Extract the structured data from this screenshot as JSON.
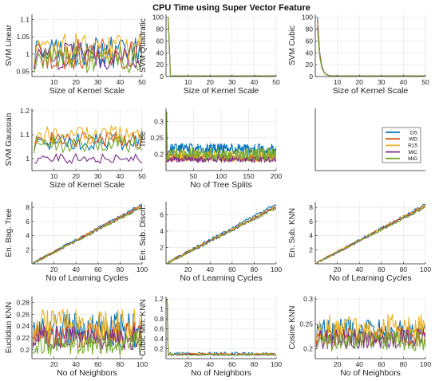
{
  "figure": {
    "title": "CPU Time using Super Vector Feature"
  },
  "colors": {
    "DS": "#0072BD",
    "WD": "#D95319",
    "R15": "#EDB120",
    "MiC": "#7E2F8E",
    "MiG": "#77AC30"
  },
  "chart_data": [
    {
      "id": "svm-linear",
      "type": "line",
      "ylabel": "SVM Linear",
      "xlabel": "Size of Kernel Scale",
      "xlim": [
        0,
        50
      ],
      "ylim": [
        0.935,
        1.115
      ],
      "xticks": [
        10,
        20,
        30,
        40,
        50
      ],
      "yticks": [
        0.95,
        1,
        1.05,
        1.1
      ],
      "ytick_labels": [
        "0.95",
        "1",
        "1.05",
        "1.1"
      ],
      "profile": "noisy",
      "n": 50,
      "series": [
        {
          "name": "DS",
          "mean": 1.005,
          "amp": 0.045
        },
        {
          "name": "WD",
          "mean": 1.0,
          "amp": 0.045
        },
        {
          "name": "R15",
          "mean": 1.01,
          "amp": 0.05
        },
        {
          "name": "MiC",
          "mean": 0.995,
          "amp": 0.04
        },
        {
          "name": "MiG",
          "mean": 0.985,
          "amp": 0.04
        }
      ]
    },
    {
      "id": "svm-quadratic",
      "type": "line",
      "ylabel": "SVM Quadratic",
      "xlabel": "Size of Kernel Scale",
      "xlim": [
        0,
        50
      ],
      "ylim": [
        0,
        105
      ],
      "xticks": [
        10,
        20,
        30,
        40,
        50
      ],
      "yticks": [
        0,
        20,
        40,
        60,
        80,
        100
      ],
      "ytick_labels": [
        "0",
        "20",
        "40",
        "60",
        "80",
        "100"
      ],
      "profile": "spike",
      "n": 50,
      "series": [
        {
          "name": "DS",
          "start": 100,
          "end": 0.8
        },
        {
          "name": "WD",
          "start": 100,
          "end": 0.8
        },
        {
          "name": "R15",
          "start": 100,
          "end": 0.8
        },
        {
          "name": "MiC",
          "start": 100,
          "end": 0.8
        },
        {
          "name": "MiG",
          "start": 100,
          "end": 0.8
        }
      ]
    },
    {
      "id": "svm-cubic",
      "type": "line",
      "ylabel": "SVM Cubic",
      "xlabel": "Size of Kernel Scale",
      "xlim": [
        0,
        50
      ],
      "ylim": [
        0,
        105
      ],
      "xticks": [
        10,
        20,
        30,
        40,
        50
      ],
      "yticks": [
        0,
        20,
        40,
        60,
        80,
        100
      ],
      "ytick_labels": [
        "0",
        "20",
        "40",
        "60",
        "80",
        "100"
      ],
      "profile": "decay",
      "n": 50,
      "series": [
        {
          "name": "DS",
          "start": 100,
          "end": 1
        },
        {
          "name": "WD",
          "start": 95,
          "end": 1
        },
        {
          "name": "R15",
          "start": 90,
          "end": 1
        },
        {
          "name": "MiC",
          "start": 85,
          "end": 1
        },
        {
          "name": "MiG",
          "start": 80,
          "end": 1
        }
      ]
    },
    {
      "id": "svm-gaussian",
      "type": "line",
      "ylabel": "SVM Gaussian",
      "xlabel": "Size of Kernel Scale",
      "xlim": [
        0,
        50
      ],
      "ylim": [
        0.95,
        1.21
      ],
      "xticks": [
        10,
        20,
        30,
        40,
        50
      ],
      "yticks": [
        1,
        1.1,
        1.2
      ],
      "ytick_labels": [
        "1",
        "1.1",
        "1.2"
      ],
      "profile": "noisy",
      "n": 50,
      "series": [
        {
          "name": "DS",
          "mean": 1.07,
          "amp": 0.035
        },
        {
          "name": "WD",
          "mean": 1.08,
          "amp": 0.035
        },
        {
          "name": "R15",
          "mean": 1.1,
          "amp": 0.04
        },
        {
          "name": "MiC",
          "mean": 1.0,
          "amp": 0.02
        },
        {
          "name": "MiG",
          "mean": 1.06,
          "amp": 0.04
        }
      ]
    },
    {
      "id": "tree",
      "type": "line",
      "ylabel": "Tree",
      "xlabel": "No of Tree Splits",
      "xlim": [
        0,
        200
      ],
      "ylim": [
        0.15,
        0.34
      ],
      "xticks": [
        50,
        100,
        150,
        200
      ],
      "yticks": [
        0.2,
        0.25,
        0.3
      ],
      "ytick_labels": [
        "0.2",
        "0.25",
        "0.3"
      ],
      "profile": "noisy-first",
      "n": 200,
      "first": 0.33,
      "series": [
        {
          "name": "DS",
          "mean": 0.215,
          "amp": 0.018
        },
        {
          "name": "WD",
          "mean": 0.19,
          "amp": 0.012
        },
        {
          "name": "R15",
          "mean": 0.195,
          "amp": 0.018
        },
        {
          "name": "MiC",
          "mean": 0.185,
          "amp": 0.01
        },
        {
          "name": "MiG",
          "mean": 0.2,
          "amp": 0.02
        }
      ]
    },
    {
      "id": "legend-panel",
      "type": "empty",
      "legend": [
        "DS",
        "WD",
        "R15",
        "MiC",
        "MiG"
      ]
    },
    {
      "id": "en-bag-tree",
      "type": "line",
      "ylabel": "En. Bag. Tree",
      "xlabel": "No of Learning Cycles",
      "xlim": [
        0,
        100
      ],
      "ylim": [
        0,
        8.8
      ],
      "xticks": [
        20,
        40,
        60,
        80,
        100
      ],
      "yticks": [
        2,
        4,
        6,
        8
      ],
      "ytick_labels": [
        "2",
        "4",
        "6",
        "8"
      ],
      "profile": "linear",
      "n": 100,
      "series": [
        {
          "name": "DS",
          "start": 0.1,
          "end": 8.4
        },
        {
          "name": "WD",
          "start": 0.1,
          "end": 8.3
        },
        {
          "name": "R15",
          "start": 0.1,
          "end": 8.2
        },
        {
          "name": "MiC",
          "start": 0.1,
          "end": 8.1
        },
        {
          "name": "MiG",
          "start": 0.1,
          "end": 8.0
        }
      ]
    },
    {
      "id": "en-sub-discr",
      "type": "line",
      "ylabel": "En. Sub. Discri.",
      "xlabel": "No of Learning Cycles",
      "xlim": [
        0,
        100
      ],
      "ylim": [
        0,
        7.6
      ],
      "xticks": [
        20,
        40,
        60,
        80,
        100
      ],
      "yticks": [
        2,
        4,
        6
      ],
      "ytick_labels": [
        "2",
        "4",
        "6"
      ],
      "profile": "linear",
      "n": 100,
      "series": [
        {
          "name": "DS",
          "start": 0.1,
          "end": 7.3
        },
        {
          "name": "WD",
          "start": 0.1,
          "end": 7.0
        },
        {
          "name": "R15",
          "start": 0.1,
          "end": 7.0
        },
        {
          "name": "MiC",
          "start": 0.1,
          "end": 6.9
        },
        {
          "name": "MiG",
          "start": 0.1,
          "end": 6.8
        }
      ]
    },
    {
      "id": "en-sub-knn",
      "type": "line",
      "ylabel": "En. Sub. KNN",
      "xlabel": "No of Learning Cycles",
      "xlim": [
        0,
        100
      ],
      "ylim": [
        0,
        8.8
      ],
      "xticks": [
        20,
        40,
        60,
        80,
        100
      ],
      "yticks": [
        2,
        4,
        6,
        8
      ],
      "ytick_labels": [
        "2",
        "4",
        "6",
        "8"
      ],
      "profile": "linear",
      "n": 100,
      "series": [
        {
          "name": "DS",
          "start": 0.1,
          "end": 8.4
        },
        {
          "name": "WD",
          "start": 0.1,
          "end": 8.3
        },
        {
          "name": "R15",
          "start": 0.1,
          "end": 8.3
        },
        {
          "name": "MiC",
          "start": 0.1,
          "end": 8.1
        },
        {
          "name": "MiG",
          "start": 0.1,
          "end": 8.0
        }
      ]
    },
    {
      "id": "euclidian-knn",
      "type": "line",
      "ylabel": "Euclidian KNN",
      "xlabel": "No of Neighbors",
      "xlim": [
        0,
        100
      ],
      "ylim": [
        0.185,
        0.29
      ],
      "xticks": [
        20,
        40,
        60,
        80,
        100
      ],
      "yticks": [
        0.2,
        0.22,
        0.24,
        0.26,
        0.28
      ],
      "ytick_labels": [
        "0.2",
        "0.22",
        "0.24",
        "0.26",
        "0.28"
      ],
      "profile": "noisy",
      "n": 100,
      "series": [
        {
          "name": "DS",
          "mean": 0.235,
          "amp": 0.03
        },
        {
          "name": "WD",
          "mean": 0.225,
          "amp": 0.022
        },
        {
          "name": "R15",
          "mean": 0.24,
          "amp": 0.03
        },
        {
          "name": "MiC",
          "mean": 0.22,
          "amp": 0.02
        },
        {
          "name": "MiG",
          "mean": 0.21,
          "amp": 0.02
        }
      ]
    },
    {
      "id": "cubic-min-knn",
      "type": "line",
      "ylabel": "Cubic Min. KNN",
      "xlabel": "No of Neighbors",
      "xlim": [
        0,
        100
      ],
      "ylim": [
        0,
        1.25
      ],
      "xticks": [
        20,
        40,
        60,
        80,
        100
      ],
      "yticks": [
        0.2,
        0.4,
        0.6,
        0.8,
        1,
        1.2
      ],
      "ytick_labels": [
        "0.2",
        "0.4",
        "0.6",
        "0.8",
        "1",
        "1.2"
      ],
      "profile": "spike-noisy",
      "n": 100,
      "series": [
        {
          "name": "DS",
          "start": 1.2,
          "mean": 0.1,
          "amp": 0.03
        },
        {
          "name": "WD",
          "start": 1.2,
          "mean": 0.09,
          "amp": 0.02
        },
        {
          "name": "R15",
          "start": 1.2,
          "mean": 0.09,
          "amp": 0.02
        },
        {
          "name": "MiC",
          "start": 1.2,
          "mean": 0.08,
          "amp": 0.015
        },
        {
          "name": "MiG",
          "start": 1.2,
          "mean": 0.08,
          "amp": 0.015
        }
      ]
    },
    {
      "id": "cosine-knn",
      "type": "line",
      "ylabel": "Cosine KNN",
      "xlabel": "No of Neighbors",
      "xlim": [
        0,
        100
      ],
      "ylim": [
        0.18,
        0.305
      ],
      "xticks": [
        20,
        40,
        60,
        80,
        100
      ],
      "yticks": [
        0.2,
        0.25,
        0.3
      ],
      "ytick_labels": [
        "0.2",
        "0.25",
        "0.3"
      ],
      "profile": "noisy",
      "n": 100,
      "series": [
        {
          "name": "DS",
          "mean": 0.235,
          "amp": 0.025
        },
        {
          "name": "WD",
          "mean": 0.225,
          "amp": 0.02
        },
        {
          "name": "R15",
          "mean": 0.24,
          "amp": 0.03
        },
        {
          "name": "MiC",
          "mean": 0.22,
          "amp": 0.02
        },
        {
          "name": "MiG",
          "mean": 0.215,
          "amp": 0.02
        }
      ]
    }
  ]
}
